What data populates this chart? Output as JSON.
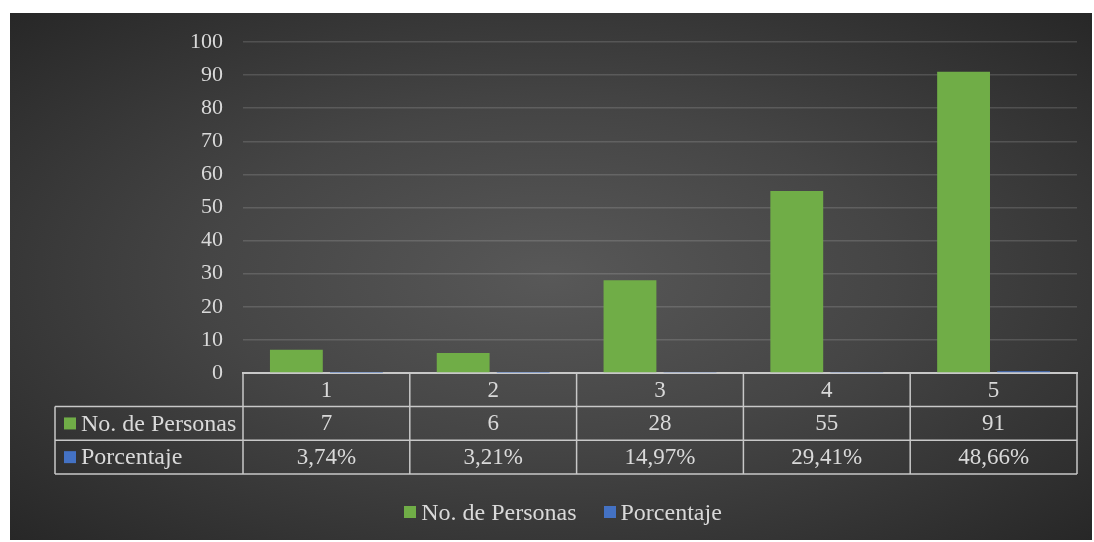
{
  "chart_data": {
    "type": "bar",
    "categories": [
      "1",
      "2",
      "3",
      "4",
      "5"
    ],
    "series": [
      {
        "name": "No. de Personas",
        "color": "#70ad47",
        "values": [
          7,
          6,
          28,
          55,
          91
        ],
        "value_labels": [
          "7",
          "6",
          "28",
          "55",
          "91"
        ]
      },
      {
        "name": "Porcentaje",
        "color": "#4472c4",
        "values": [
          0.0374,
          0.0321,
          0.1497,
          0.2941,
          0.4866
        ],
        "value_labels": [
          "3,74%",
          "3,21%",
          "14,97%",
          "29,41%",
          "48,66%"
        ]
      }
    ],
    "ylim": [
      0,
      100
    ],
    "yticks": [
      0,
      10,
      20,
      30,
      40,
      50,
      60,
      70,
      80,
      90,
      100
    ],
    "grid": "y",
    "legend": "bottom"
  }
}
